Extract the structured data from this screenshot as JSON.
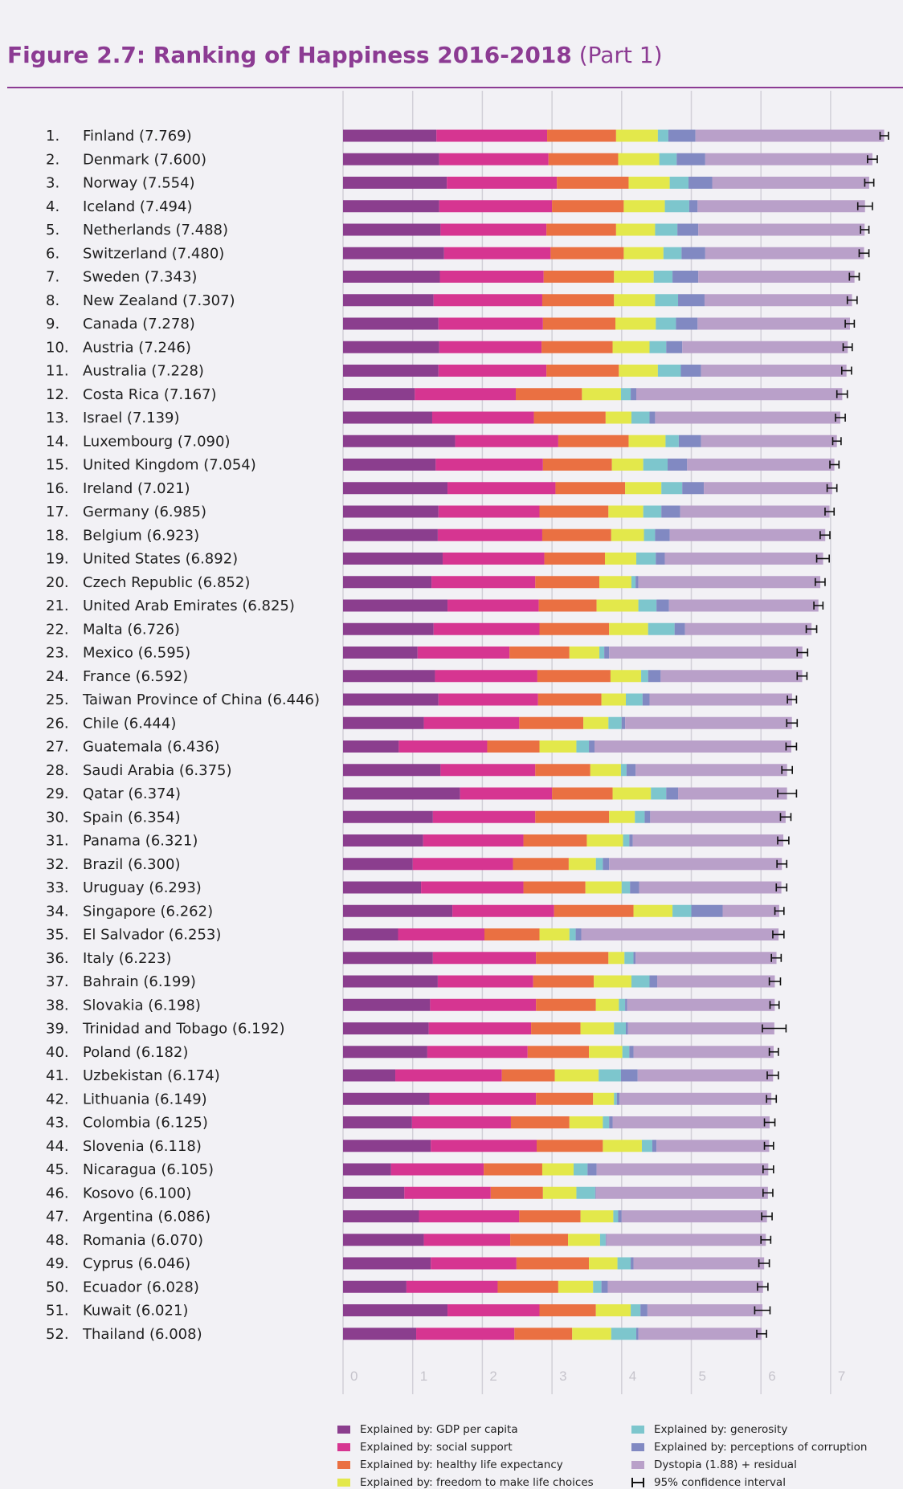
{
  "title": {
    "main": "Figure 2.7: Ranking of Happiness 2016-2018",
    "part": "(Part 1)"
  },
  "chart_data": {
    "type": "bar",
    "orientation": "horizontal",
    "stacked": true,
    "xlim": [
      0,
      8
    ],
    "x_ticks": [
      "0",
      "1",
      "2",
      "3",
      "4",
      "5",
      "6",
      "7"
    ],
    "grid": true,
    "legend_position": "bottom",
    "components": [
      {
        "key": "gdp",
        "name": "Explained by: GDP per capita",
        "color": "#8b3e8e"
      },
      {
        "key": "social",
        "name": "Explained by: social support",
        "color": "#d63591"
      },
      {
        "key": "health",
        "name": "Explained by: healthy life expectancy",
        "color": "#ea7042"
      },
      {
        "key": "freedom",
        "name": "Explained by: freedom to make life choices",
        "color": "#e3e84b"
      },
      {
        "key": "generosity",
        "name": "Explained by: generosity",
        "color": "#7dc6cd"
      },
      {
        "key": "corruption",
        "name": "Explained by: perceptions of corruption",
        "color": "#8189c2"
      },
      {
        "key": "dystopia",
        "name": "Dystopia (1.88) + residual",
        "color": "#b9a0c9"
      }
    ],
    "ci_label": "95% confidence interval",
    "countries": [
      {
        "rank": "1.",
        "label": "Finland (7.769)",
        "score": 7.769,
        "ci": [
          7.71,
          7.83
        ],
        "parts": [
          1.34,
          1.59,
          0.99,
          0.6,
          0.15,
          0.39,
          2.71
        ]
      },
      {
        "rank": "2.",
        "label": "Denmark (7.600)",
        "score": 7.6,
        "ci": [
          7.53,
          7.67
        ],
        "parts": [
          1.38,
          1.57,
          1.0,
          0.59,
          0.25,
          0.41,
          2.4
        ]
      },
      {
        "rank": "3.",
        "label": "Norway (7.554)",
        "score": 7.554,
        "ci": [
          7.49,
          7.62
        ],
        "parts": [
          1.49,
          1.58,
          1.03,
          0.59,
          0.27,
          0.34,
          2.25
        ]
      },
      {
        "rank": "4.",
        "label": "Iceland (7.494)",
        "score": 7.494,
        "ci": [
          7.39,
          7.6
        ],
        "parts": [
          1.38,
          1.62,
          1.03,
          0.59,
          0.35,
          0.12,
          2.4
        ]
      },
      {
        "rank": "5.",
        "label": "Netherlands (7.488)",
        "score": 7.488,
        "ci": [
          7.43,
          7.55
        ],
        "parts": [
          1.4,
          1.52,
          1.0,
          0.56,
          0.32,
          0.3,
          2.39
        ]
      },
      {
        "rank": "6.",
        "label": "Switzerland (7.480)",
        "score": 7.48,
        "ci": [
          7.41,
          7.55
        ],
        "parts": [
          1.45,
          1.53,
          1.05,
          0.57,
          0.26,
          0.34,
          2.28
        ]
      },
      {
        "rank": "7.",
        "label": "Sweden (7.343)",
        "score": 7.343,
        "ci": [
          7.27,
          7.41
        ],
        "parts": [
          1.39,
          1.49,
          1.01,
          0.57,
          0.27,
          0.37,
          2.24
        ]
      },
      {
        "rank": "8.",
        "label": "New Zealand (7.307)",
        "score": 7.307,
        "ci": [
          7.24,
          7.38
        ],
        "parts": [
          1.3,
          1.56,
          1.03,
          0.59,
          0.33,
          0.38,
          2.11
        ]
      },
      {
        "rank": "9.",
        "label": "Canada (7.278)",
        "score": 7.278,
        "ci": [
          7.21,
          7.34
        ],
        "parts": [
          1.37,
          1.5,
          1.04,
          0.58,
          0.29,
          0.31,
          2.19
        ]
      },
      {
        "rank": "10.",
        "label": "Austria (7.246)",
        "score": 7.246,
        "ci": [
          7.18,
          7.31
        ],
        "parts": [
          1.38,
          1.47,
          1.02,
          0.53,
          0.24,
          0.23,
          2.37
        ]
      },
      {
        "rank": "11.",
        "label": "Australia (7.228)",
        "score": 7.228,
        "ci": [
          7.16,
          7.3
        ],
        "parts": [
          1.37,
          1.55,
          1.04,
          0.56,
          0.33,
          0.29,
          2.09
        ]
      },
      {
        "rank": "12.",
        "label": "Costa Rica (7.167)",
        "score": 7.167,
        "ci": [
          7.09,
          7.24
        ],
        "parts": [
          1.03,
          1.45,
          0.95,
          0.56,
          0.14,
          0.08,
          2.95
        ]
      },
      {
        "rank": "13.",
        "label": "Israel (7.139)",
        "score": 7.139,
        "ci": [
          7.07,
          7.21
        ],
        "parts": [
          1.28,
          1.46,
          1.03,
          0.37,
          0.26,
          0.08,
          2.66
        ]
      },
      {
        "rank": "14.",
        "label": "Luxembourg (7.090)",
        "score": 7.09,
        "ci": [
          7.03,
          7.15
        ],
        "parts": [
          1.61,
          1.48,
          1.01,
          0.53,
          0.19,
          0.32,
          1.95
        ]
      },
      {
        "rank": "15.",
        "label": "United Kingdom (7.054)",
        "score": 7.054,
        "ci": [
          6.99,
          7.12
        ],
        "parts": [
          1.33,
          1.54,
          0.99,
          0.45,
          0.35,
          0.28,
          2.11
        ]
      },
      {
        "rank": "16.",
        "label": "Ireland (7.021)",
        "score": 7.021,
        "ci": [
          6.95,
          7.09
        ],
        "parts": [
          1.5,
          1.55,
          1.0,
          0.52,
          0.3,
          0.31,
          1.84
        ]
      },
      {
        "rank": "17.",
        "label": "Germany (6.985)",
        "score": 6.985,
        "ci": [
          6.92,
          7.05
        ],
        "parts": [
          1.37,
          1.45,
          0.99,
          0.5,
          0.26,
          0.27,
          2.14
        ]
      },
      {
        "rank": "18.",
        "label": "Belgium (6.923)",
        "score": 6.923,
        "ci": [
          6.85,
          6.99
        ],
        "parts": [
          1.36,
          1.5,
          0.99,
          0.47,
          0.16,
          0.21,
          2.23
        ]
      },
      {
        "rank": "19.",
        "label": "United States (6.892)",
        "score": 6.892,
        "ci": [
          6.8,
          6.98
        ],
        "parts": [
          1.43,
          1.46,
          0.87,
          0.45,
          0.28,
          0.13,
          2.27
        ]
      },
      {
        "rank": "20.",
        "label": "Czech Republic (6.852)",
        "score": 6.852,
        "ci": [
          6.78,
          6.92
        ],
        "parts": [
          1.27,
          1.49,
          0.92,
          0.46,
          0.06,
          0.04,
          2.61
        ]
      },
      {
        "rank": "21.",
        "label": "United Arab Emirates (6.825)",
        "score": 6.825,
        "ci": [
          6.76,
          6.89
        ],
        "parts": [
          1.5,
          1.31,
          0.83,
          0.6,
          0.26,
          0.18,
          2.14
        ]
      },
      {
        "rank": "22.",
        "label": "Malta (6.726)",
        "score": 6.726,
        "ci": [
          6.65,
          6.8
        ],
        "parts": [
          1.3,
          1.52,
          1.0,
          0.56,
          0.38,
          0.15,
          1.82
        ]
      },
      {
        "rank": "23.",
        "label": "Mexico (6.595)",
        "score": 6.595,
        "ci": [
          6.52,
          6.67
        ],
        "parts": [
          1.07,
          1.32,
          0.86,
          0.43,
          0.07,
          0.07,
          2.79
        ]
      },
      {
        "rank": "24.",
        "label": "France (6.592)",
        "score": 6.592,
        "ci": [
          6.52,
          6.66
        ],
        "parts": [
          1.32,
          1.47,
          1.05,
          0.44,
          0.1,
          0.18,
          2.02
        ]
      },
      {
        "rank": "25.",
        "label": "Taiwan Province of China (6.446)",
        "score": 6.446,
        "ci": [
          6.38,
          6.51
        ],
        "parts": [
          1.37,
          1.43,
          0.91,
          0.35,
          0.24,
          0.1,
          2.05
        ]
      },
      {
        "rank": "26.",
        "label": "Chile (6.444)",
        "score": 6.444,
        "ci": [
          6.37,
          6.52
        ],
        "parts": [
          1.16,
          1.37,
          0.92,
          0.36,
          0.19,
          0.05,
          2.39
        ]
      },
      {
        "rank": "27.",
        "label": "Guatemala (6.436)",
        "score": 6.436,
        "ci": [
          6.36,
          6.51
        ],
        "parts": [
          0.8,
          1.27,
          0.75,
          0.53,
          0.18,
          0.08,
          2.83
        ]
      },
      {
        "rank": "28.",
        "label": "Saudi Arabia (6.375)",
        "score": 6.375,
        "ci": [
          6.3,
          6.45
        ],
        "parts": [
          1.4,
          1.36,
          0.79,
          0.44,
          0.08,
          0.13,
          2.17
        ]
      },
      {
        "rank": "29.",
        "label": "Qatar (6.374)",
        "score": 6.374,
        "ci": [
          6.24,
          6.51
        ],
        "parts": [
          1.68,
          1.32,
          0.87,
          0.55,
          0.22,
          0.17,
          1.56
        ]
      },
      {
        "rank": "30.",
        "label": "Spain (6.354)",
        "score": 6.354,
        "ci": [
          6.28,
          6.43
        ],
        "parts": [
          1.29,
          1.47,
          1.06,
          0.37,
          0.14,
          0.08,
          1.94
        ]
      },
      {
        "rank": "31.",
        "label": "Panama (6.321)",
        "score": 6.321,
        "ci": [
          6.24,
          6.4
        ],
        "parts": [
          1.15,
          1.44,
          0.91,
          0.52,
          0.09,
          0.05,
          2.16
        ]
      },
      {
        "rank": "32.",
        "label": "Brazil (6.300)",
        "score": 6.3,
        "ci": [
          6.23,
          6.37
        ],
        "parts": [
          1.0,
          1.44,
          0.8,
          0.39,
          0.1,
          0.09,
          2.48
        ]
      },
      {
        "rank": "33.",
        "label": "Uruguay (6.293)",
        "score": 6.293,
        "ci": [
          6.22,
          6.37
        ],
        "parts": [
          1.12,
          1.47,
          0.89,
          0.52,
          0.12,
          0.13,
          2.04
        ]
      },
      {
        "rank": "34.",
        "label": "Singapore (6.262)",
        "score": 6.262,
        "ci": [
          6.2,
          6.33
        ],
        "parts": [
          1.57,
          1.46,
          1.14,
          0.56,
          0.27,
          0.45,
          0.82
        ]
      },
      {
        "rank": "35.",
        "label": "El Salvador (6.253)",
        "score": 6.253,
        "ci": [
          6.17,
          6.33
        ],
        "parts": [
          0.79,
          1.24,
          0.79,
          0.43,
          0.09,
          0.08,
          2.83
        ]
      },
      {
        "rank": "36.",
        "label": "Italy (6.223)",
        "score": 6.223,
        "ci": [
          6.15,
          6.29
        ],
        "parts": [
          1.29,
          1.48,
          1.04,
          0.23,
          0.13,
          0.03,
          2.0
        ]
      },
      {
        "rank": "37.",
        "label": "Bahrain (6.199)",
        "score": 6.199,
        "ci": [
          6.12,
          6.28
        ],
        "parts": [
          1.36,
          1.37,
          0.87,
          0.54,
          0.26,
          0.11,
          1.71
        ]
      },
      {
        "rank": "38.",
        "label": "Slovakia (6.198)",
        "score": 6.198,
        "ci": [
          6.13,
          6.26
        ],
        "parts": [
          1.25,
          1.52,
          0.86,
          0.33,
          0.09,
          0.03,
          2.12
        ]
      },
      {
        "rank": "39.",
        "label": "Trinidad and Tobago (6.192)",
        "score": 6.192,
        "ci": [
          6.02,
          6.36
        ],
        "parts": [
          1.23,
          1.47,
          0.71,
          0.48,
          0.17,
          0.03,
          2.11
        ]
      },
      {
        "rank": "40.",
        "label": "Poland (6.182)",
        "score": 6.182,
        "ci": [
          6.12,
          6.25
        ],
        "parts": [
          1.21,
          1.44,
          0.88,
          0.48,
          0.1,
          0.06,
          2.02
        ]
      },
      {
        "rank": "41.",
        "label": "Uzbekistan (6.174)",
        "score": 6.174,
        "ci": [
          6.09,
          6.25
        ],
        "parts": [
          0.75,
          1.53,
          0.76,
          0.63,
          0.32,
          0.24,
          1.95
        ]
      },
      {
        "rank": "42.",
        "label": "Lithuania (6.149)",
        "score": 6.149,
        "ci": [
          6.08,
          6.22
        ],
        "parts": [
          1.24,
          1.53,
          0.82,
          0.3,
          0.04,
          0.04,
          2.17
        ]
      },
      {
        "rank": "43.",
        "label": "Colombia (6.125)",
        "score": 6.125,
        "ci": [
          6.05,
          6.2
        ],
        "parts": [
          0.99,
          1.42,
          0.84,
          0.48,
          0.09,
          0.05,
          2.25
        ]
      },
      {
        "rank": "44.",
        "label": "Slovenia (6.118)",
        "score": 6.118,
        "ci": [
          6.05,
          6.18
        ],
        "parts": [
          1.26,
          1.52,
          0.95,
          0.56,
          0.15,
          0.06,
          1.62
        ]
      },
      {
        "rank": "45.",
        "label": "Nicaragua (6.105)",
        "score": 6.105,
        "ci": [
          6.03,
          6.18
        ],
        "parts": [
          0.69,
          1.33,
          0.84,
          0.45,
          0.2,
          0.13,
          2.46
        ]
      },
      {
        "rank": "46.",
        "label": "Kosovo (6.100)",
        "score": 6.1,
        "ci": [
          6.03,
          6.17
        ],
        "parts": [
          0.88,
          1.24,
          0.75,
          0.48,
          0.27,
          0.01,
          2.47
        ]
      },
      {
        "rank": "47.",
        "label": "Argentina (6.086)",
        "score": 6.086,
        "ci": [
          6.01,
          6.16
        ],
        "parts": [
          1.09,
          1.44,
          0.88,
          0.47,
          0.07,
          0.05,
          2.09
        ]
      },
      {
        "rank": "48.",
        "label": "Romania (6.070)",
        "score": 6.07,
        "ci": [
          6.0,
          6.14
        ],
        "parts": [
          1.16,
          1.24,
          0.83,
          0.46,
          0.08,
          0.01,
          2.29
        ]
      },
      {
        "rank": "49.",
        "label": "Cyprus (6.046)",
        "score": 6.046,
        "ci": [
          5.97,
          6.12
        ],
        "parts": [
          1.26,
          1.23,
          1.04,
          0.41,
          0.19,
          0.04,
          1.88
        ]
      },
      {
        "rank": "50.",
        "label": "Ecuador (6.028)",
        "score": 6.028,
        "ci": [
          5.95,
          6.1
        ],
        "parts": [
          0.91,
          1.31,
          0.87,
          0.5,
          0.12,
          0.09,
          2.23
        ]
      },
      {
        "rank": "51.",
        "label": "Kuwait (6.021)",
        "score": 6.021,
        "ci": [
          5.91,
          6.13
        ],
        "parts": [
          1.5,
          1.32,
          0.81,
          0.5,
          0.14,
          0.1,
          1.65
        ]
      },
      {
        "rank": "52.",
        "label": "Thailand (6.008)",
        "score": 6.008,
        "ci": [
          5.94,
          6.08
        ],
        "parts": [
          1.05,
          1.41,
          0.83,
          0.56,
          0.36,
          0.03,
          1.77
        ]
      }
    ]
  }
}
